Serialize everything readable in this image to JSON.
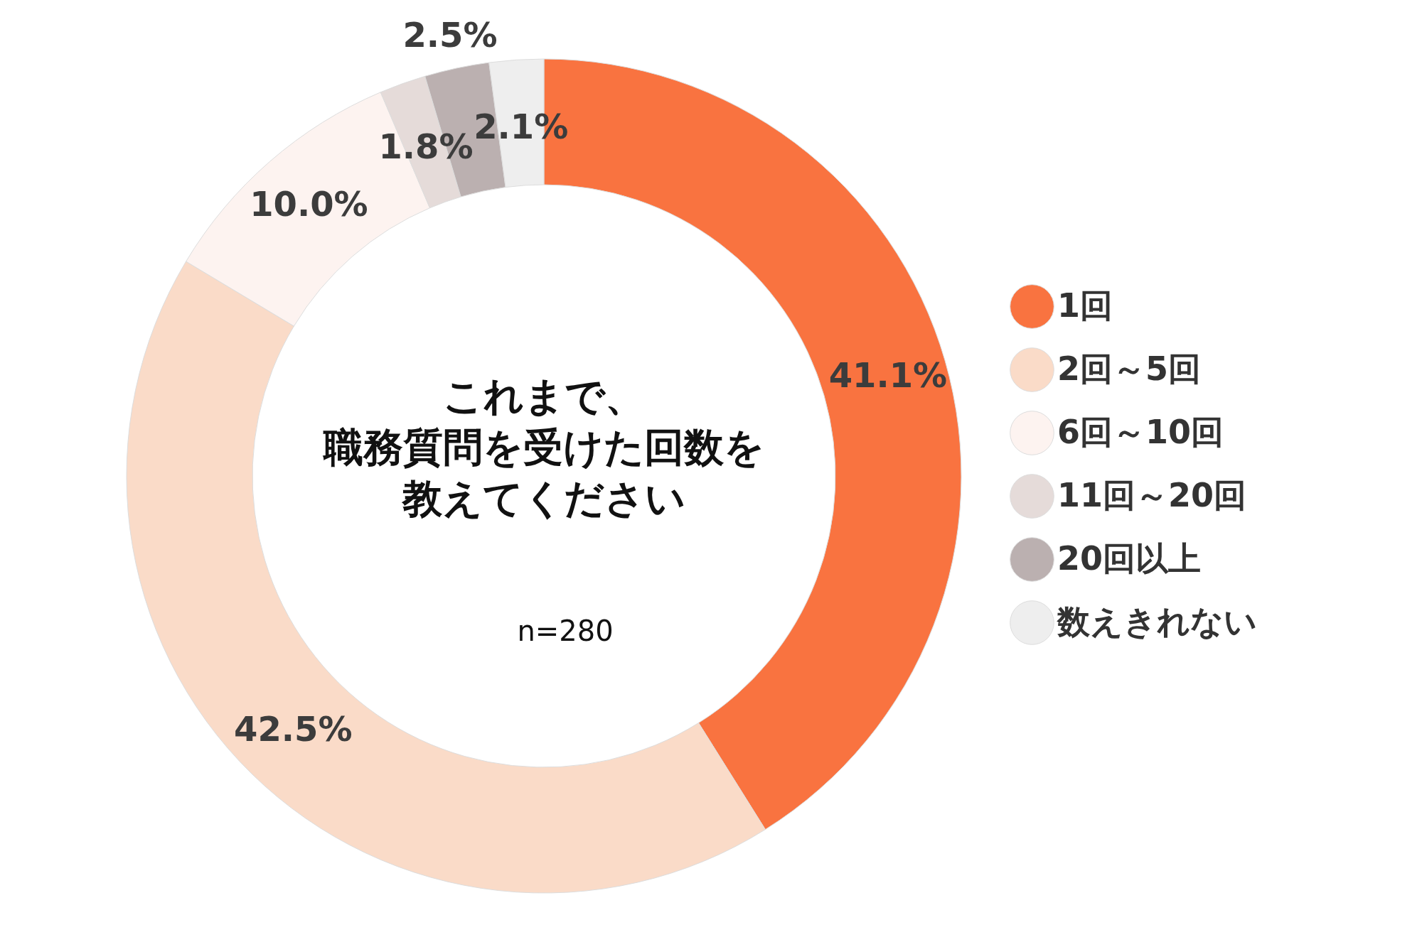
{
  "chart_data": {
    "type": "donut",
    "title": "これまで、職務質問を受けた回数を教えてください",
    "categories": [
      "1回",
      "2回～5回",
      "6回～10回",
      "11回～20回",
      "20回以上",
      "数えきれない"
    ],
    "values": [
      41.1,
      42.5,
      10.0,
      1.8,
      2.5,
      2.1
    ],
    "colors": [
      "#f97340",
      "#fadbc8",
      "#fdf3f0",
      "#e5dbd9",
      "#bbb0b0",
      "#eeeeee"
    ],
    "value_labels": [
      "41.1%",
      "42.5%",
      "10.0%",
      "1.8%",
      "2.5%",
      "2.1%"
    ],
    "legend": "right",
    "annotations": [
      "n=280"
    ]
  }
}
